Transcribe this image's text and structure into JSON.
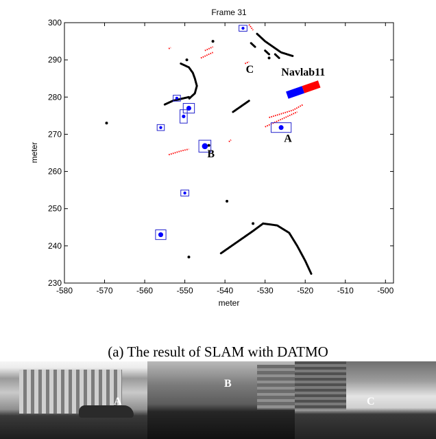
{
  "chart_data": {
    "type": "scatter",
    "title": "Frame 31",
    "xlabel": "meter",
    "ylabel": "meter",
    "xlim": [
      -580,
      -498
    ],
    "ylim": [
      230,
      300
    ],
    "xticks": [
      -580,
      -570,
      -560,
      -550,
      -540,
      -530,
      -520,
      -510,
      -500
    ],
    "yticks": [
      230,
      240,
      250,
      260,
      270,
      280,
      290,
      300
    ],
    "grid": false,
    "colors": {
      "static": "#000000",
      "moving": "#ff0000",
      "tracked": "#0000ff",
      "box": "#2222cc"
    },
    "static_curves": [
      [
        [
          -555,
          278
        ],
        [
          -553,
          279
        ],
        [
          -551,
          279.5
        ],
        [
          -549,
          280
        ]
      ],
      [
        [
          -551,
          289
        ],
        [
          -549,
          288
        ],
        [
          -548,
          286.5
        ],
        [
          -547.5,
          285
        ],
        [
          -547,
          283
        ],
        [
          -547.5,
          281
        ],
        [
          -549,
          279.5
        ]
      ],
      [
        [
          -538,
          276
        ],
        [
          -536,
          277.5
        ],
        [
          -534,
          279
        ]
      ],
      [
        [
          -532,
          297
        ],
        [
          -530,
          295
        ],
        [
          -528,
          293.5
        ],
        [
          -526,
          292
        ],
        [
          -523,
          291
        ]
      ],
      [
        [
          -533.5,
          294.5
        ],
        [
          -532.5,
          293.5
        ]
      ],
      [
        [
          -530,
          292.5
        ],
        [
          -529,
          291.5
        ]
      ],
      [
        [
          -527.5,
          291.5
        ],
        [
          -526.5,
          290.5
        ]
      ],
      [
        [
          -541,
          238
        ],
        [
          -537,
          241
        ],
        [
          -533,
          244
        ],
        [
          -530.5,
          246
        ],
        [
          -527,
          245.5
        ],
        [
          -524,
          243.5
        ],
        [
          -522,
          240
        ],
        [
          -520,
          236
        ],
        [
          -518.5,
          232.5
        ]
      ]
    ],
    "static_points": [
      [
        -569.5,
        273
      ],
      [
        -539.5,
        252
      ],
      [
        -549,
        237
      ],
      [
        -533,
        246
      ],
      [
        -543,
        295
      ],
      [
        -529,
        290.5
      ],
      [
        -544,
        267
      ],
      [
        -549.5,
        290
      ]
    ],
    "moving_tracks": [
      [
        [
          -530,
          272
        ],
        [
          -527,
          273.5
        ],
        [
          -524,
          275
        ],
        [
          -522,
          276
        ]
      ],
      [
        [
          -529,
          274.5
        ],
        [
          -526,
          275.5
        ],
        [
          -523,
          276.5
        ],
        [
          -520.5,
          278
        ]
      ],
      [
        [
          -554,
          264.5
        ],
        [
          -551,
          265.5
        ],
        [
          -549,
          266
        ]
      ],
      [
        [
          -535,
          289
        ],
        [
          -534,
          289.5
        ]
      ],
      [
        [
          -546,
          290.5
        ],
        [
          -544,
          291.5
        ],
        [
          -543,
          292
        ]
      ],
      [
        [
          -545,
          292.5
        ],
        [
          -543,
          293.5
        ]
      ],
      [
        [
          -554,
          293
        ],
        [
          -553.5,
          293.3
        ]
      ],
      [
        [
          -534,
          299.5
        ],
        [
          -533,
          298
        ]
      ],
      [
        [
          -539,
          268
        ],
        [
          -538.5,
          268.5
        ]
      ]
    ],
    "tracked_objects": [
      {
        "x": -535.5,
        "y": 298.5,
        "w": 2,
        "h": 1.6
      },
      {
        "x": -552,
        "y": 279.7,
        "w": 1.8,
        "h": 1.6
      },
      {
        "x": -549,
        "y": 277,
        "w": 2.8,
        "h": 2.6
      },
      {
        "x": -550.3,
        "y": 274.8,
        "w": 1.8,
        "h": 3.6
      },
      {
        "x": -556,
        "y": 271.8,
        "w": 1.8,
        "h": 1.6
      },
      {
        "x": -526,
        "y": 271.8,
        "w": 5,
        "h": 2.6
      },
      {
        "x": -545,
        "y": 266.8,
        "w": 3,
        "h": 3.2
      },
      {
        "x": -550,
        "y": 254.2,
        "w": 2,
        "h": 1.6
      },
      {
        "x": -556,
        "y": 243,
        "w": 2.6,
        "h": 2.6
      }
    ],
    "ego_vehicle": {
      "name": "Navlab11",
      "x_rear": -524.5,
      "y_rear": 280.5,
      "x_front": -516.5,
      "y_front": 283.5
    },
    "annotations": [
      {
        "text": "C",
        "x": -533.8,
        "y": 286.5
      },
      {
        "text": "Navlab11",
        "x": -520.5,
        "y": 285.8
      },
      {
        "text": "A",
        "x": -524.3,
        "y": 268
      },
      {
        "text": "B",
        "x": -543.5,
        "y": 263.8
      }
    ]
  },
  "caption": "(a) The result of SLAM with DATMO",
  "photos": {
    "labels": [
      "A",
      "B",
      "C"
    ]
  }
}
